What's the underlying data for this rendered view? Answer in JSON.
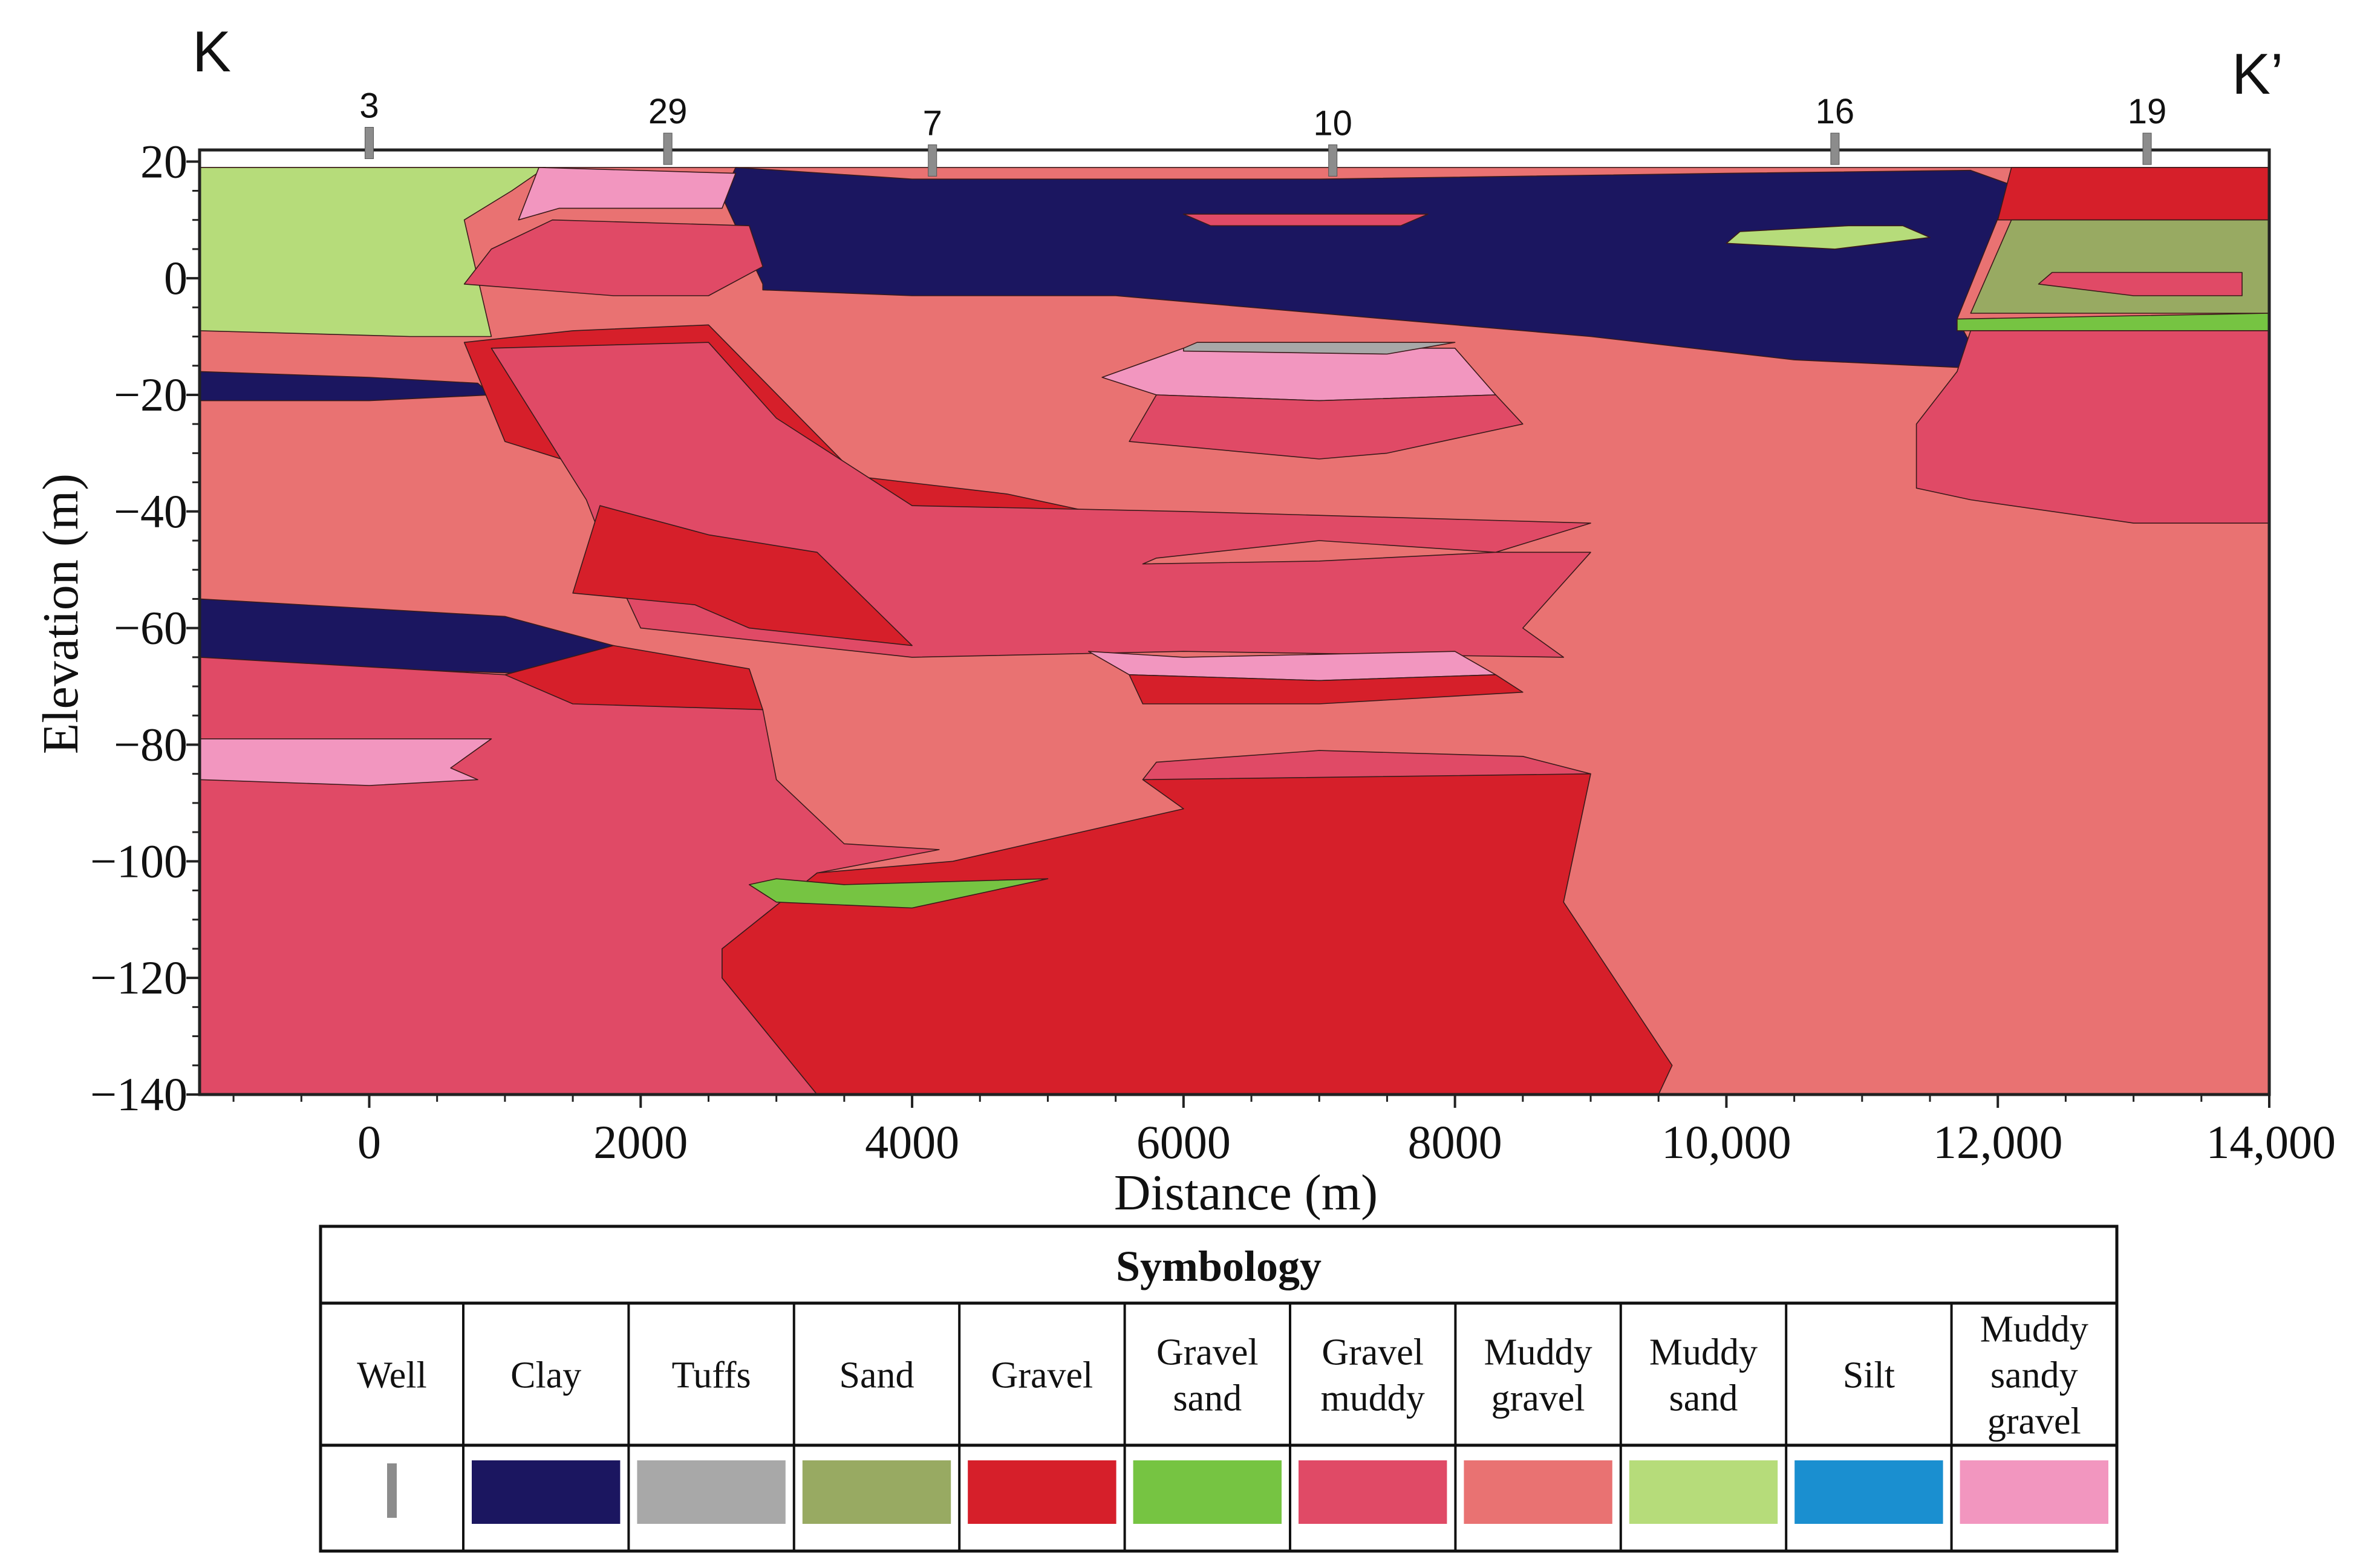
{
  "section": {
    "start_label": "K",
    "end_label": "K’"
  },
  "axes": {
    "x_title": "Distance (m)",
    "y_title": "Elevation (m)",
    "x_range": [
      -1250,
      14000
    ],
    "y_range": [
      -140,
      22
    ],
    "x_ticks": [
      {
        "value": 0,
        "label": "0"
      },
      {
        "value": 2000,
        "label": "2000"
      },
      {
        "value": 4000,
        "label": "4000"
      },
      {
        "value": 6000,
        "label": "6000"
      },
      {
        "value": 8000,
        "label": "8000"
      },
      {
        "value": 10000,
        "label": "10,000"
      },
      {
        "value": 12000,
        "label": "12,000"
      },
      {
        "value": 14000,
        "label": "14,000"
      }
    ],
    "y_ticks": [
      {
        "value": 20,
        "label": "20"
      },
      {
        "value": 0,
        "label": "0"
      },
      {
        "value": -20,
        "label": "−20"
      },
      {
        "value": -40,
        "label": "−40"
      },
      {
        "value": -60,
        "label": "−60"
      },
      {
        "value": -80,
        "label": "−80"
      },
      {
        "value": -100,
        "label": "−100"
      },
      {
        "value": -120,
        "label": "−120"
      },
      {
        "value": -140,
        "label": "−140"
      }
    ]
  },
  "wells": [
    {
      "label": "3",
      "x": 0,
      "top": 20.5
    },
    {
      "label": "29",
      "x": 2200,
      "top": 19.5
    },
    {
      "label": "7",
      "x": 4150,
      "top": 17.5
    },
    {
      "label": "10",
      "x": 7100,
      "top": 17.5
    },
    {
      "label": "16",
      "x": 10800,
      "top": 19.5
    },
    {
      "label": "19",
      "x": 13100,
      "top": 19.5
    }
  ],
  "colors": {
    "well": "#8c8c8c",
    "clay": "#1b1660",
    "tuffs": "#a8a8a8",
    "sand": "#98aa62",
    "gravel": "#d61f2a",
    "gravel_sand": "#76c442",
    "gravel_muddy": "#e04a66",
    "muddy_gravel": "#e97272",
    "muddy_sand": "#b6dc7a",
    "silt": "#1a8fd0",
    "muddy_sandy_gravel": "#f296bf"
  },
  "legend": {
    "title": "Symbology",
    "items": [
      {
        "key": "well",
        "lines": [
          "Well"
        ]
      },
      {
        "key": "clay",
        "lines": [
          "Clay"
        ]
      },
      {
        "key": "tuffs",
        "lines": [
          "Tuffs"
        ]
      },
      {
        "key": "sand",
        "lines": [
          "Sand"
        ]
      },
      {
        "key": "gravel",
        "lines": [
          "Gravel"
        ]
      },
      {
        "key": "gravel_sand",
        "lines": [
          "Gravel",
          "sand"
        ]
      },
      {
        "key": "gravel_muddy",
        "lines": [
          "Gravel",
          "muddy"
        ]
      },
      {
        "key": "muddy_gravel",
        "lines": [
          "Muddy",
          "gravel"
        ]
      },
      {
        "key": "muddy_sand",
        "lines": [
          "Muddy",
          "sand"
        ]
      },
      {
        "key": "silt",
        "lines": [
          "Silt"
        ]
      },
      {
        "key": "muddy_sandy_gravel",
        "lines": [
          "Muddy",
          "sandy",
          "gravel"
        ]
      }
    ]
  },
  "units": [
    {
      "name": "muddy-gravel-base",
      "type": "muddy_gravel",
      "pts": [
        [
          -1250,
          19
        ],
        [
          14000,
          19
        ],
        [
          14000,
          -140
        ],
        [
          -1250,
          -140
        ]
      ]
    },
    {
      "name": "clay-upper",
      "type": "clay",
      "pts": [
        [
          2700,
          19
        ],
        [
          4000,
          17
        ],
        [
          7000,
          17
        ],
        [
          10000,
          18
        ],
        [
          11800,
          18.5
        ],
        [
          12100,
          16
        ],
        [
          11700,
          -7
        ],
        [
          11900,
          -15.5
        ],
        [
          10500,
          -14
        ],
        [
          9000,
          -10
        ],
        [
          7000,
          -6
        ],
        [
          5500,
          -3
        ],
        [
          4000,
          -3
        ],
        [
          2900,
          -2
        ],
        [
          2900,
          -1
        ],
        [
          2600,
          14
        ]
      ]
    },
    {
      "name": "muddy-sand-west",
      "type": "muddy_sand",
      "pts": [
        [
          -1250,
          19
        ],
        [
          1300,
          19
        ],
        [
          1050,
          15
        ],
        [
          700,
          10
        ],
        [
          800,
          0
        ],
        [
          900,
          -10
        ],
        [
          300,
          -10
        ],
        [
          -1250,
          -9
        ]
      ]
    },
    {
      "name": "muddy-sandy-gravel-29a",
      "type": "muddy_sandy_gravel",
      "pts": [
        [
          1250,
          19
        ],
        [
          2700,
          18
        ],
        [
          2600,
          12
        ],
        [
          1400,
          12
        ],
        [
          1100,
          10
        ]
      ]
    },
    {
      "name": "gravel-muddy-29b",
      "type": "gravel_muddy",
      "pts": [
        [
          1350,
          10
        ],
        [
          2800,
          9
        ],
        [
          2900,
          2
        ],
        [
          2500,
          -3
        ],
        [
          1800,
          -3
        ],
        [
          700,
          -1
        ],
        [
          900,
          5
        ]
      ]
    },
    {
      "name": "muddy-sand-16",
      "type": "muddy_sand",
      "pts": [
        [
          10100,
          8
        ],
        [
          10900,
          9
        ],
        [
          11300,
          9
        ],
        [
          11500,
          7
        ],
        [
          10800,
          5
        ],
        [
          10000,
          6
        ]
      ]
    },
    {
      "name": "gravel-19",
      "type": "gravel",
      "pts": [
        [
          12100,
          19
        ],
        [
          14000,
          19
        ],
        [
          14000,
          10
        ],
        [
          12000,
          10
        ]
      ]
    },
    {
      "name": "sand-19",
      "type": "sand",
      "pts": [
        [
          12100,
          10
        ],
        [
          14000,
          10
        ],
        [
          14000,
          -6
        ],
        [
          12000,
          -6
        ],
        [
          11800,
          -6
        ]
      ]
    },
    {
      "name": "gravel-sand-19",
      "type": "gravel_sand",
      "pts": [
        [
          11700,
          -7
        ],
        [
          14000,
          -6
        ],
        [
          14000,
          -9
        ],
        [
          11700,
          -9
        ]
      ]
    },
    {
      "name": "gravel-muddy-19",
      "type": "gravel_muddy",
      "pts": [
        [
          11800,
          -9
        ],
        [
          14000,
          -9
        ],
        [
          14000,
          -42
        ],
        [
          13000,
          -42
        ],
        [
          11800,
          -38
        ],
        [
          11400,
          -36
        ],
        [
          11400,
          -25
        ],
        [
          11700,
          -16
        ]
      ]
    },
    {
      "name": "clay-west-lens",
      "type": "clay",
      "pts": [
        [
          -1250,
          -16
        ],
        [
          0,
          -17
        ],
        [
          800,
          -18
        ],
        [
          900,
          -20
        ],
        [
          0,
          -21
        ],
        [
          -1250,
          -21
        ]
      ]
    },
    {
      "name": "gravel-upper-band",
      "type": "gravel",
      "pts": [
        [
          700,
          -11
        ],
        [
          1500,
          -9
        ],
        [
          2500,
          -8
        ],
        [
          3600,
          -34
        ],
        [
          4700,
          -37
        ],
        [
          5300,
          -40
        ],
        [
          4000,
          -41
        ],
        [
          3500,
          -40
        ],
        [
          2100,
          -36
        ],
        [
          1000,
          -28
        ]
      ]
    },
    {
      "name": "gravel-muddy-band",
      "type": "gravel_muddy",
      "pts": [
        [
          900,
          -12
        ],
        [
          2500,
          -11
        ],
        [
          3000,
          -24
        ],
        [
          4000,
          -39
        ],
        [
          6000,
          -40
        ],
        [
          9000,
          -42
        ],
        [
          8300,
          -47
        ],
        [
          9000,
          -47
        ],
        [
          8500,
          -60
        ],
        [
          8800,
          -65
        ],
        [
          6000,
          -64
        ],
        [
          4000,
          -65
        ],
        [
          2000,
          -60
        ],
        [
          1800,
          -50
        ],
        [
          1600,
          -38
        ]
      ]
    },
    {
      "name": "gravel-lower-29",
      "type": "gravel",
      "pts": [
        [
          1700,
          -39
        ],
        [
          2500,
          -44
        ],
        [
          3300,
          -47
        ],
        [
          4000,
          -63
        ],
        [
          2800,
          -60
        ],
        [
          2400,
          -56
        ],
        [
          1500,
          -54
        ]
      ]
    },
    {
      "name": "muddy-gravel-lens-10",
      "type": "muddy_gravel",
      "pts": [
        [
          5800,
          -48
        ],
        [
          7000,
          -45
        ],
        [
          8300,
          -47
        ],
        [
          7000,
          -48.5
        ],
        [
          5700,
          -49
        ]
      ]
    },
    {
      "name": "clay-lower-west",
      "type": "clay",
      "pts": [
        [
          -1250,
          -55
        ],
        [
          1000,
          -58
        ],
        [
          1800,
          -63
        ],
        [
          1500,
          -68
        ],
        [
          0,
          -67
        ],
        [
          -1250,
          -66
        ]
      ]
    },
    {
      "name": "gravel-muddy-west-main",
      "type": "gravel_muddy",
      "pts": [
        [
          -1250,
          -65
        ],
        [
          1000,
          -68
        ],
        [
          2900,
          -74
        ],
        [
          3000,
          -86
        ],
        [
          3500,
          -97
        ],
        [
          4200,
          -98
        ],
        [
          3300,
          -102
        ],
        [
          2600,
          -115
        ],
        [
          2600,
          -120
        ],
        [
          3300,
          -140
        ],
        [
          -1250,
          -140
        ]
      ]
    },
    {
      "name": "gravel-29-lower",
      "type": "gravel",
      "pts": [
        [
          1000,
          -68
        ],
        [
          1800,
          -63
        ],
        [
          2800,
          -67
        ],
        [
          2900,
          -74
        ],
        [
          1500,
          -73
        ]
      ]
    },
    {
      "name": "muddy-sandy-gravel-west",
      "type": "muddy_sandy_gravel",
      "pts": [
        [
          -1250,
          -79
        ],
        [
          0,
          -79
        ],
        [
          900,
          -79
        ],
        [
          600,
          -84
        ],
        [
          800,
          -86
        ],
        [
          0,
          -87
        ],
        [
          -1250,
          -86
        ]
      ]
    },
    {
      "name": "muddy-sandy-gravel-10a",
      "type": "muddy_sandy_gravel",
      "pts": [
        [
          5300,
          -64
        ],
        [
          6000,
          -65
        ],
        [
          8000,
          -64
        ],
        [
          8300,
          -68
        ],
        [
          7000,
          -69
        ],
        [
          5600,
          -68
        ]
      ]
    },
    {
      "name": "gravel-10a",
      "type": "gravel",
      "pts": [
        [
          5600,
          -68
        ],
        [
          7000,
          -69
        ],
        [
          8300,
          -68
        ],
        [
          8500,
          -71
        ],
        [
          7000,
          -73
        ],
        [
          5700,
          -73
        ]
      ]
    },
    {
      "name": "gravel-muddy-10b",
      "type": "gravel_muddy",
      "pts": [
        [
          5800,
          -83
        ],
        [
          7000,
          -81
        ],
        [
          8500,
          -82
        ],
        [
          9000,
          -85
        ],
        [
          7000,
          -86
        ],
        [
          5700,
          -86
        ]
      ]
    },
    {
      "name": "gravel-lower-main",
      "type": "gravel",
      "pts": [
        [
          5700,
          -86
        ],
        [
          9000,
          -85
        ],
        [
          8800,
          -107
        ],
        [
          9600,
          -135
        ],
        [
          9500,
          -140
        ],
        [
          3300,
          -140
        ],
        [
          2600,
          -120
        ],
        [
          2600,
          -115
        ],
        [
          3300,
          -102
        ],
        [
          4300,
          -100
        ],
        [
          6000,
          -91
        ]
      ]
    },
    {
      "name": "gravel-sand-lower",
      "type": "gravel_sand",
      "pts": [
        [
          3000,
          -103
        ],
        [
          3500,
          -104
        ],
        [
          5000,
          -103
        ],
        [
          4000,
          -108
        ],
        [
          3000,
          -107
        ],
        [
          2800,
          -104
        ]
      ]
    },
    {
      "name": "muddy-sandy-gravel-10b",
      "type": "muddy_sandy_gravel",
      "pts": [
        [
          5400,
          -17
        ],
        [
          6000,
          -12
        ],
        [
          8000,
          -12
        ],
        [
          8300,
          -20
        ],
        [
          7000,
          -21
        ],
        [
          5800,
          -20
        ]
      ]
    },
    {
      "name": "tuffs-10",
      "type": "tuffs",
      "pts": [
        [
          6000,
          -12
        ],
        [
          6100,
          -11
        ],
        [
          8000,
          -11
        ],
        [
          7500,
          -13
        ],
        [
          6000,
          -12.5
        ]
      ]
    },
    {
      "name": "gravel-muddy-10a",
      "type": "gravel_muddy",
      "pts": [
        [
          5800,
          -20
        ],
        [
          7000,
          -21
        ],
        [
          8300,
          -20
        ],
        [
          8500,
          -25
        ],
        [
          7500,
          -30
        ],
        [
          7000,
          -31
        ],
        [
          5600,
          -28
        ]
      ]
    },
    {
      "name": "gravel-muddy-10-top",
      "type": "gravel_muddy",
      "pts": [
        [
          6000,
          11
        ],
        [
          7000,
          11
        ],
        [
          7800,
          11
        ],
        [
          7600,
          9
        ],
        [
          7000,
          9
        ],
        [
          6200,
          9
        ]
      ]
    },
    {
      "name": "gravel-muddy-19-lens",
      "type": "gravel_muddy",
      "pts": [
        [
          12400,
          1
        ],
        [
          13100,
          1
        ],
        [
          13800,
          1
        ],
        [
          13800,
          -3
        ],
        [
          13000,
          -3
        ],
        [
          12300,
          -1
        ]
      ]
    }
  ]
}
